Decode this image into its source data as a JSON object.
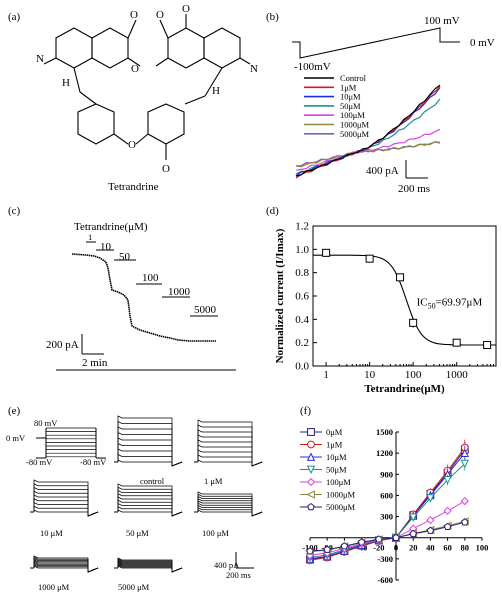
{
  "panels": {
    "a": {
      "tag": "(a)",
      "caption": "Tetrandrine",
      "ome": "O",
      "n1": "N",
      "n2": "N",
      "h1": "H",
      "h2": "H"
    },
    "b": {
      "tag": "(b)",
      "v_high": "100 mV",
      "v_zero": "0 mV",
      "v_low": "-100mV",
      "scale_y": "400 pA",
      "scale_x": "200 ms",
      "legend": [
        {
          "name": "Control",
          "color": "#000000"
        },
        {
          "name": "1μM",
          "color": "#d81b1b"
        },
        {
          "name": "10μM",
          "color": "#1c2fd8"
        },
        {
          "name": "50μM",
          "color": "#1e8f8f"
        },
        {
          "name": "100μM",
          "color": "#e040e0"
        },
        {
          "name": "1000μM",
          "color": "#8a8a3a"
        },
        {
          "name": "5000μM",
          "color": "#7a5fc0"
        }
      ]
    },
    "c": {
      "tag": "(c)",
      "title": "Tetrandrine(μM)",
      "concs": [
        "1",
        "10",
        "50",
        "100",
        "1000",
        "5000"
      ],
      "scale_y": "200 pA",
      "scale_x": "2 min"
    },
    "e": {
      "tag": "(e)",
      "v80": "80 mV",
      "v0": "0 mV",
      "vm80a": "-80 mV",
      "vm80b": "-80 mV",
      "traces": [
        "control",
        "1 μM",
        "10 μM",
        "50 μM",
        "100 μM",
        "1000 μM",
        "5000 μM"
      ],
      "scale_y": "400 pA",
      "scale_x": "200 ms"
    }
  },
  "chart_data": [
    {
      "type": "scatter",
      "panel": "(d)",
      "x": [
        1,
        10,
        50,
        100,
        1000,
        5000
      ],
      "y": [
        0.97,
        0.92,
        0.76,
        0.37,
        0.2,
        0.18
      ],
      "yerr": [
        0.02,
        0.03,
        0.03,
        0.04,
        0.03,
        0.03
      ],
      "xlabel": "Tetrandrine(μM)",
      "ylabel": "Normalized current (I/Imax)",
      "xscale": "log",
      "xlim": [
        0.5,
        8000
      ],
      "ylim": [
        0.0,
        1.2
      ],
      "xticks": [
        "1",
        "10",
        "100",
        "1000"
      ],
      "yticks": [
        "0.0",
        "0.2",
        "0.4",
        "0.6",
        "0.8",
        "1.0",
        "1.2"
      ],
      "annotation": "IC50=69.97μM",
      "fit": {
        "top": 0.95,
        "bottom": 0.18,
        "ic50": 69.97,
        "hill": 2.5
      }
    },
    {
      "type": "line",
      "panel": "(f)",
      "x": [
        -100,
        -80,
        -60,
        -40,
        -20,
        0,
        20,
        40,
        60,
        80
      ],
      "xlim": [
        -100,
        100
      ],
      "ylim": [
        -600,
        1500
      ],
      "xticks": [
        "-100",
        "-80",
        "-60",
        "-40",
        "-20",
        "0",
        "20",
        "40",
        "60",
        "80",
        "100"
      ],
      "yticks": [
        "-600",
        "-300",
        "0",
        "300",
        "600",
        "900",
        "1200",
        "1500"
      ],
      "legend": "top-left",
      "series": [
        {
          "name": "0μM",
          "color": "#1e1e8c",
          "marker": "square",
          "values": [
            -310,
            -270,
            -190,
            -110,
            -40,
            0,
            320,
            620,
            920,
            1250
          ]
        },
        {
          "name": "1μM",
          "color": "#d81b1b",
          "marker": "circle",
          "values": [
            -320,
            -280,
            -200,
            -120,
            -45,
            0,
            330,
            640,
            950,
            1280
          ]
        },
        {
          "name": "10μM",
          "color": "#2b2bd8",
          "marker": "triangle",
          "values": [
            -300,
            -265,
            -185,
            -105,
            -38,
            0,
            310,
            600,
            900,
            1200
          ]
        },
        {
          "name": "50μM",
          "color": "#1e9090",
          "marker": "triangle-down",
          "values": [
            -280,
            -245,
            -170,
            -95,
            -35,
            0,
            290,
            560,
            820,
            1050
          ]
        },
        {
          "name": "100μM",
          "color": "#e040e0",
          "marker": "diamond",
          "values": [
            -250,
            -215,
            -150,
            -85,
            -30,
            0,
            130,
            250,
            380,
            520
          ]
        },
        {
          "name": "1000μM",
          "color": "#8a8a3a",
          "marker": "triangle-left",
          "values": [
            -200,
            -175,
            -125,
            -70,
            -25,
            0,
            60,
            110,
            170,
            230
          ]
        },
        {
          "name": "5000μM",
          "color": "#2a1a7a",
          "marker": "pentagon",
          "values": [
            -190,
            -170,
            -120,
            -65,
            -22,
            0,
            55,
            100,
            155,
            220
          ]
        }
      ]
    }
  ]
}
